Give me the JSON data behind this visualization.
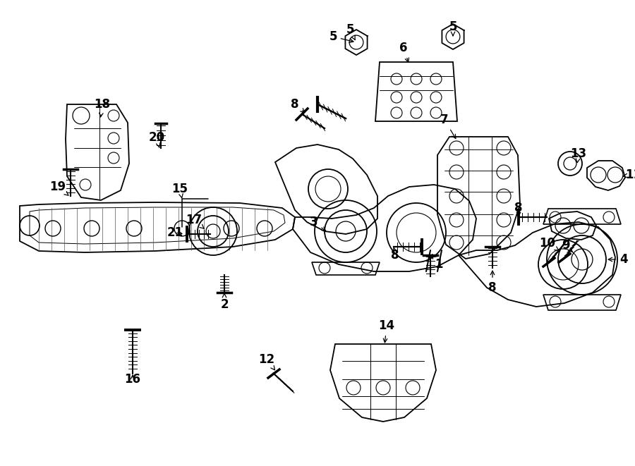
{
  "bg": "#ffffff",
  "lc": "#000000",
  "fw": 9.0,
  "fh": 6.61,
  "dpi": 100
}
